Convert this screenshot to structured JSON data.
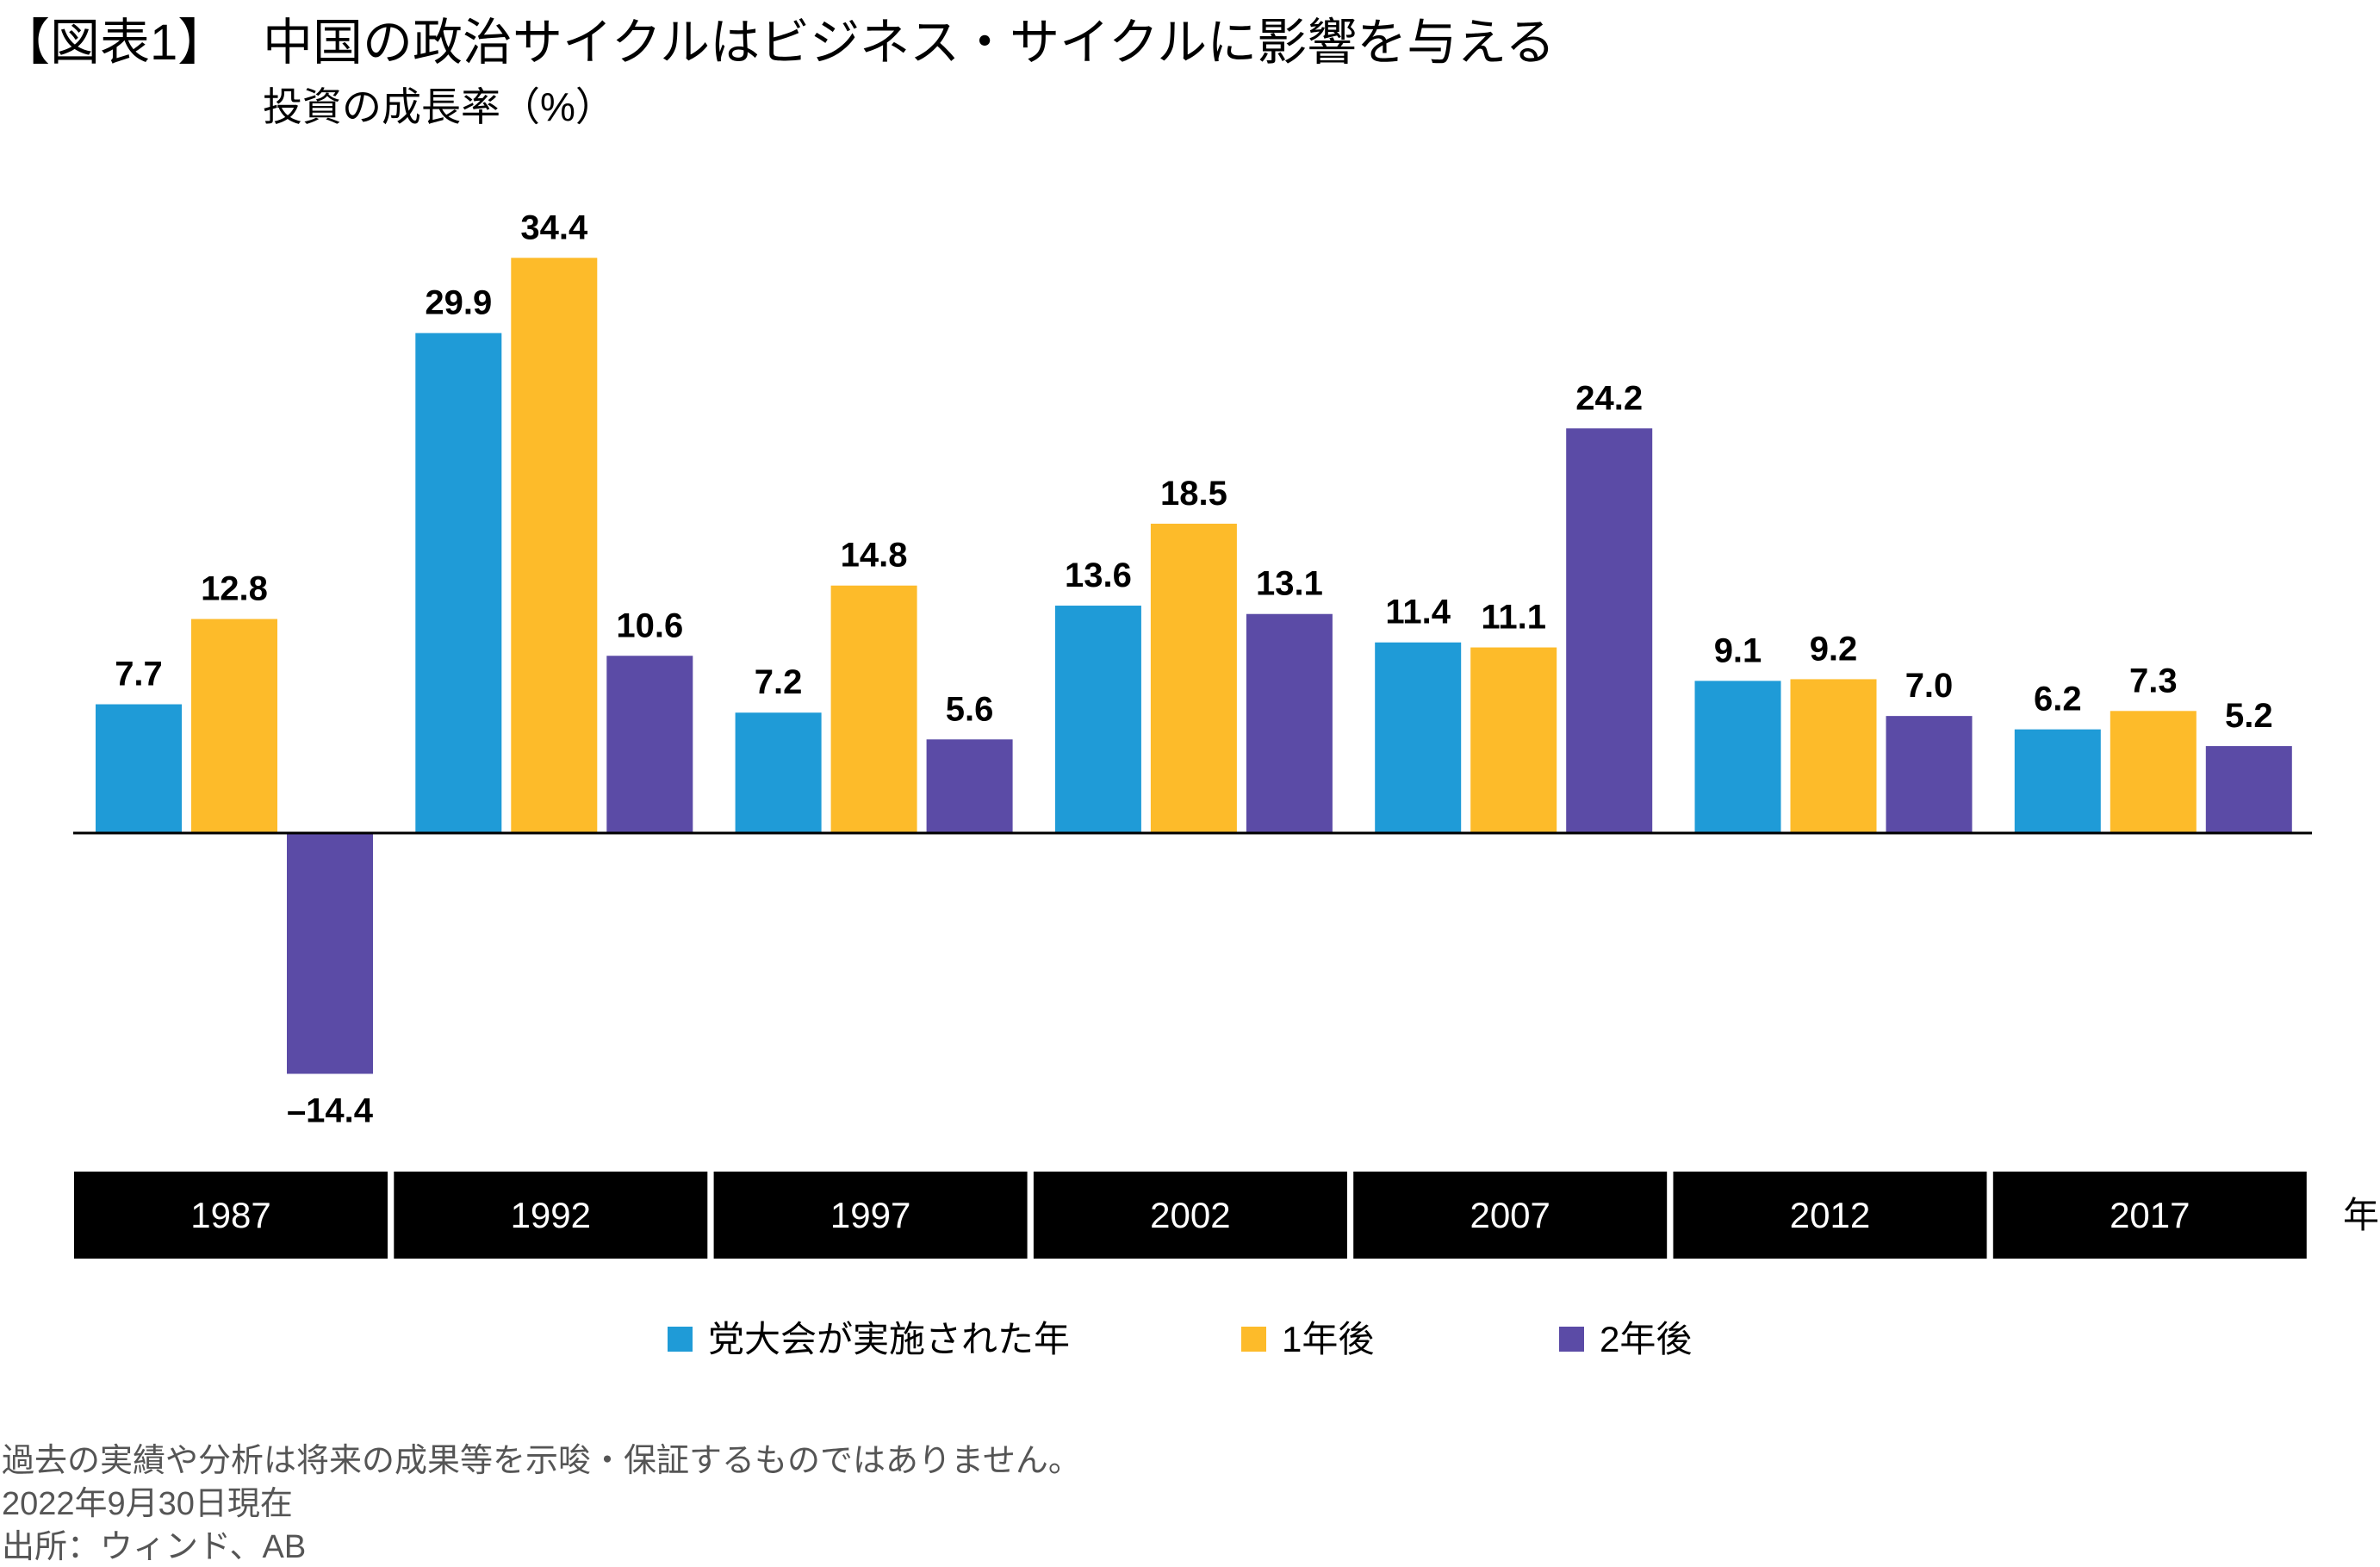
{
  "title": {
    "tag": "【図表1】",
    "main": "中国の政治サイクルはビジネス・サイクルに影響を与える"
  },
  "subtitle": "投資の成長率（%）",
  "chart_data": {
    "type": "bar",
    "title": "中国の政治サイクルはビジネス・サイクルに影響を与える",
    "ylabel": "投資の成長率（%）",
    "xlabel": "年",
    "categories": [
      "1987",
      "1992",
      "1997",
      "2002",
      "2007",
      "2012",
      "2017"
    ],
    "series": [
      {
        "name": "党大会が実施された年",
        "color": "#1f9bd7",
        "values": [
          7.7,
          29.9,
          7.2,
          13.6,
          11.4,
          9.1,
          6.2
        ],
        "labels": [
          "7.7",
          "29.9",
          "7.2",
          "13.6",
          "11.4",
          "9.1",
          "6.2"
        ]
      },
      {
        "name": "1年後",
        "color": "#fdbb2a",
        "values": [
          12.8,
          34.4,
          14.8,
          18.5,
          11.1,
          9.2,
          7.3
        ],
        "labels": [
          "12.8",
          "34.4",
          "14.8",
          "18.5",
          "11.1",
          "9.2",
          "7.3"
        ]
      },
      {
        "name": "2年後",
        "color": "#5b4ba6",
        "values": [
          -14.4,
          10.6,
          5.6,
          13.1,
          24.2,
          7.0,
          5.2
        ],
        "labels": [
          "–14.4",
          "10.6",
          "5.6",
          "13.1",
          "24.2",
          "7.0",
          "5.2"
        ]
      }
    ],
    "ylim": [
      -14.4,
      34.4
    ],
    "grid": false,
    "legend": "bottom"
  },
  "footer": {
    "disclaimer": "過去の実績や分析は将来の成果等を示唆・保証するものではありません。",
    "date": "2022年9月30日現在",
    "source": "出所：ウィンド、AB"
  }
}
